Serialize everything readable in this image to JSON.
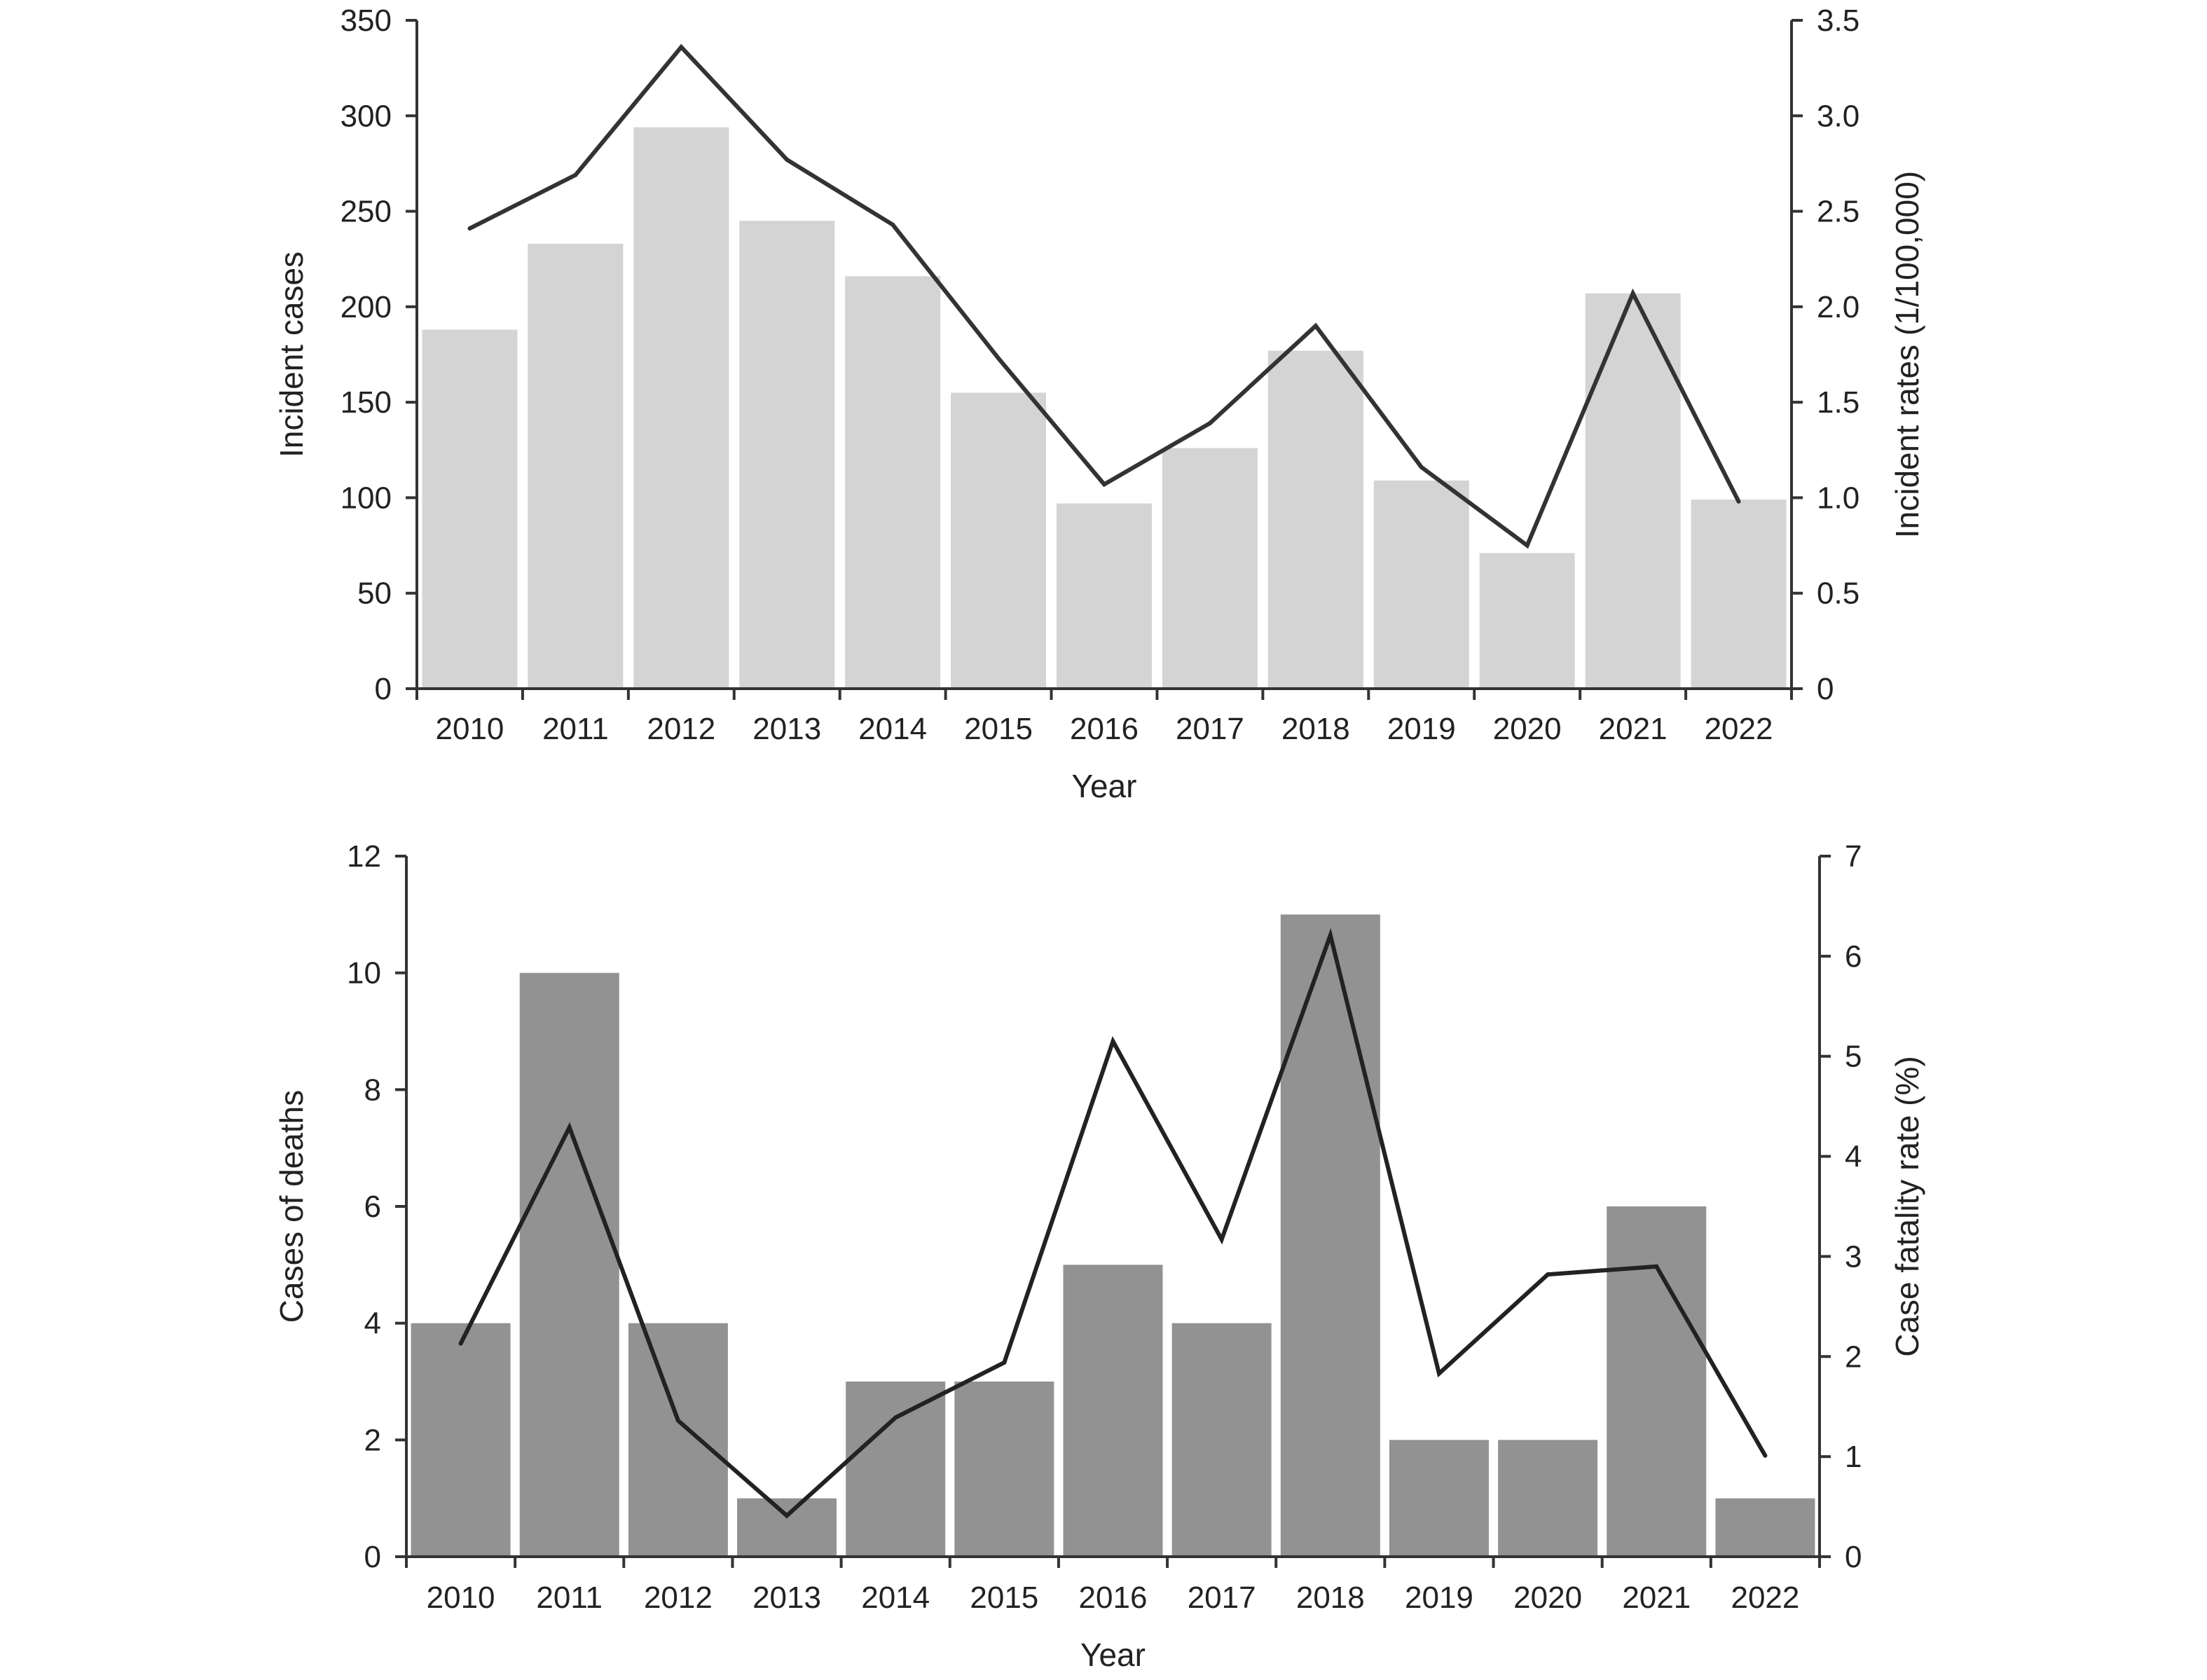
{
  "chart_data": [
    {
      "id": "incidence",
      "type": "bar+line",
      "categories": [
        "2010",
        "2011",
        "2012",
        "2013",
        "2014",
        "2015",
        "2016",
        "2017",
        "2018",
        "2019",
        "2020",
        "2021",
        "2022"
      ],
      "bar_series": {
        "name": "",
        "axis": "left",
        "values": [
          188,
          233,
          294,
          245,
          216,
          155,
          97,
          126,
          177,
          109,
          71,
          207,
          99
        ],
        "color": "#d4d4d4"
      },
      "line_series": {
        "name": "",
        "axis": "right",
        "values": [
          2.41,
          2.69,
          3.36,
          2.77,
          2.43,
          1.73,
          1.07,
          1.39,
          1.9,
          1.16,
          0.75,
          2.07,
          0.98
        ],
        "color": "#333333"
      },
      "xlabel": "Year",
      "ylabel_left": "Incident cases",
      "ylabel_right": "Incident rates (1/100,000)",
      "ylim_left": [
        0,
        350
      ],
      "yticks_left": [
        "0",
        "50",
        "100",
        "150",
        "200",
        "250",
        "300",
        "350"
      ],
      "ylim_right": [
        0,
        3.5
      ],
      "yticks_right": [
        "0",
        "0.5",
        "1.0",
        "1.5",
        "2.0",
        "2.5",
        "3.0",
        "3.5"
      ],
      "grid": false,
      "legend": "none"
    },
    {
      "id": "deaths",
      "type": "bar+line",
      "categories": [
        "2010",
        "2011",
        "2012",
        "2013",
        "2014",
        "2015",
        "2016",
        "2017",
        "2018",
        "2019",
        "2020",
        "2021",
        "2022"
      ],
      "bar_series": {
        "name": "",
        "axis": "left",
        "values": [
          4,
          10,
          4,
          1,
          3,
          3,
          5,
          4,
          11,
          2,
          2,
          6,
          1
        ],
        "color": "#929292"
      },
      "line_series": {
        "name": "",
        "axis": "right",
        "values": [
          2.13,
          4.29,
          1.36,
          0.41,
          1.39,
          1.94,
          5.15,
          3.17,
          6.21,
          1.83,
          2.82,
          2.9,
          1.01
        ],
        "color": "#222222"
      },
      "xlabel": "Year",
      "ylabel_left": "Cases of deaths",
      "ylabel_right": "Case fatality rate (%)",
      "ylim_left": [
        0,
        12
      ],
      "yticks_left": [
        "0",
        "2",
        "4",
        "6",
        "8",
        "10",
        "12"
      ],
      "ylim_right": [
        0,
        7
      ],
      "yticks_right": [
        "0",
        "1",
        "2",
        "3",
        "4",
        "5",
        "6",
        "7"
      ],
      "grid": false,
      "legend": "none"
    }
  ]
}
